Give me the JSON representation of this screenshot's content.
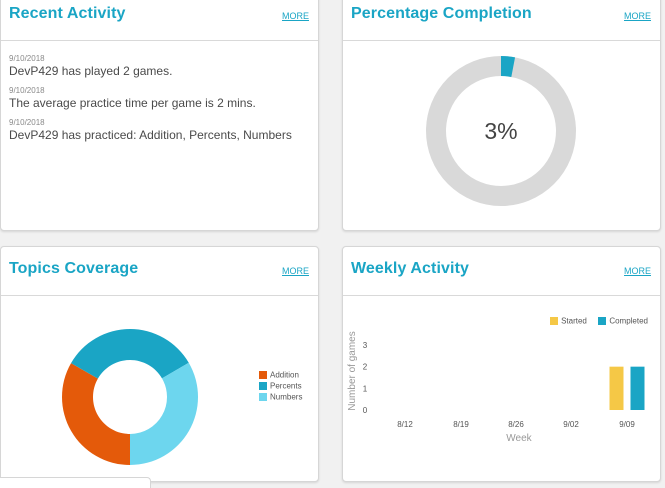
{
  "colors": {
    "accent": "#1aa5c5",
    "addition": "#e45a0a",
    "percents": "#1aa5c5",
    "numbers": "#6dd6ee",
    "started": "#f5c846",
    "completed": "#1aa5c5",
    "ring_track": "#d9d9d9"
  },
  "recent_activity": {
    "title": "Recent Activity",
    "more": "MORE",
    "items": [
      {
        "date": "9/10/2018",
        "text": "DevP429 has played 2 games."
      },
      {
        "date": "9/10/2018",
        "text": "The average practice time per game is 2 mins."
      },
      {
        "date": "9/10/2018",
        "text": "DevP429 has practiced: Addition, Percents, Numbers"
      }
    ]
  },
  "percentage_completion": {
    "title": "Percentage Completion",
    "more": "MORE",
    "value_label": "3%",
    "value": 3
  },
  "topics_coverage": {
    "title": "Topics Coverage",
    "more": "MORE",
    "legend": [
      "Addition",
      "Percents",
      "Numbers"
    ]
  },
  "weekly_activity": {
    "title": "Weekly Activity",
    "more": "MORE",
    "legend": [
      "Started",
      "Completed"
    ]
  },
  "chart_data": [
    {
      "type": "pie",
      "variant": "donut",
      "categories": [
        "Addition",
        "Percents",
        "Numbers"
      ],
      "values": [
        33.3,
        33.3,
        33.4
      ]
    },
    {
      "type": "bar",
      "categories": [
        "8/12",
        "8/19",
        "8/26",
        "9/02",
        "9/09"
      ],
      "series": [
        {
          "name": "Started",
          "values": [
            0,
            0,
            0,
            0,
            2
          ]
        },
        {
          "name": "Completed",
          "values": [
            0,
            0,
            0,
            0,
            2
          ]
        }
      ],
      "xlabel": "Week",
      "ylabel": "Number of games",
      "yticks": [
        0,
        1,
        2,
        3
      ],
      "ylim": [
        0,
        3
      ]
    }
  ]
}
